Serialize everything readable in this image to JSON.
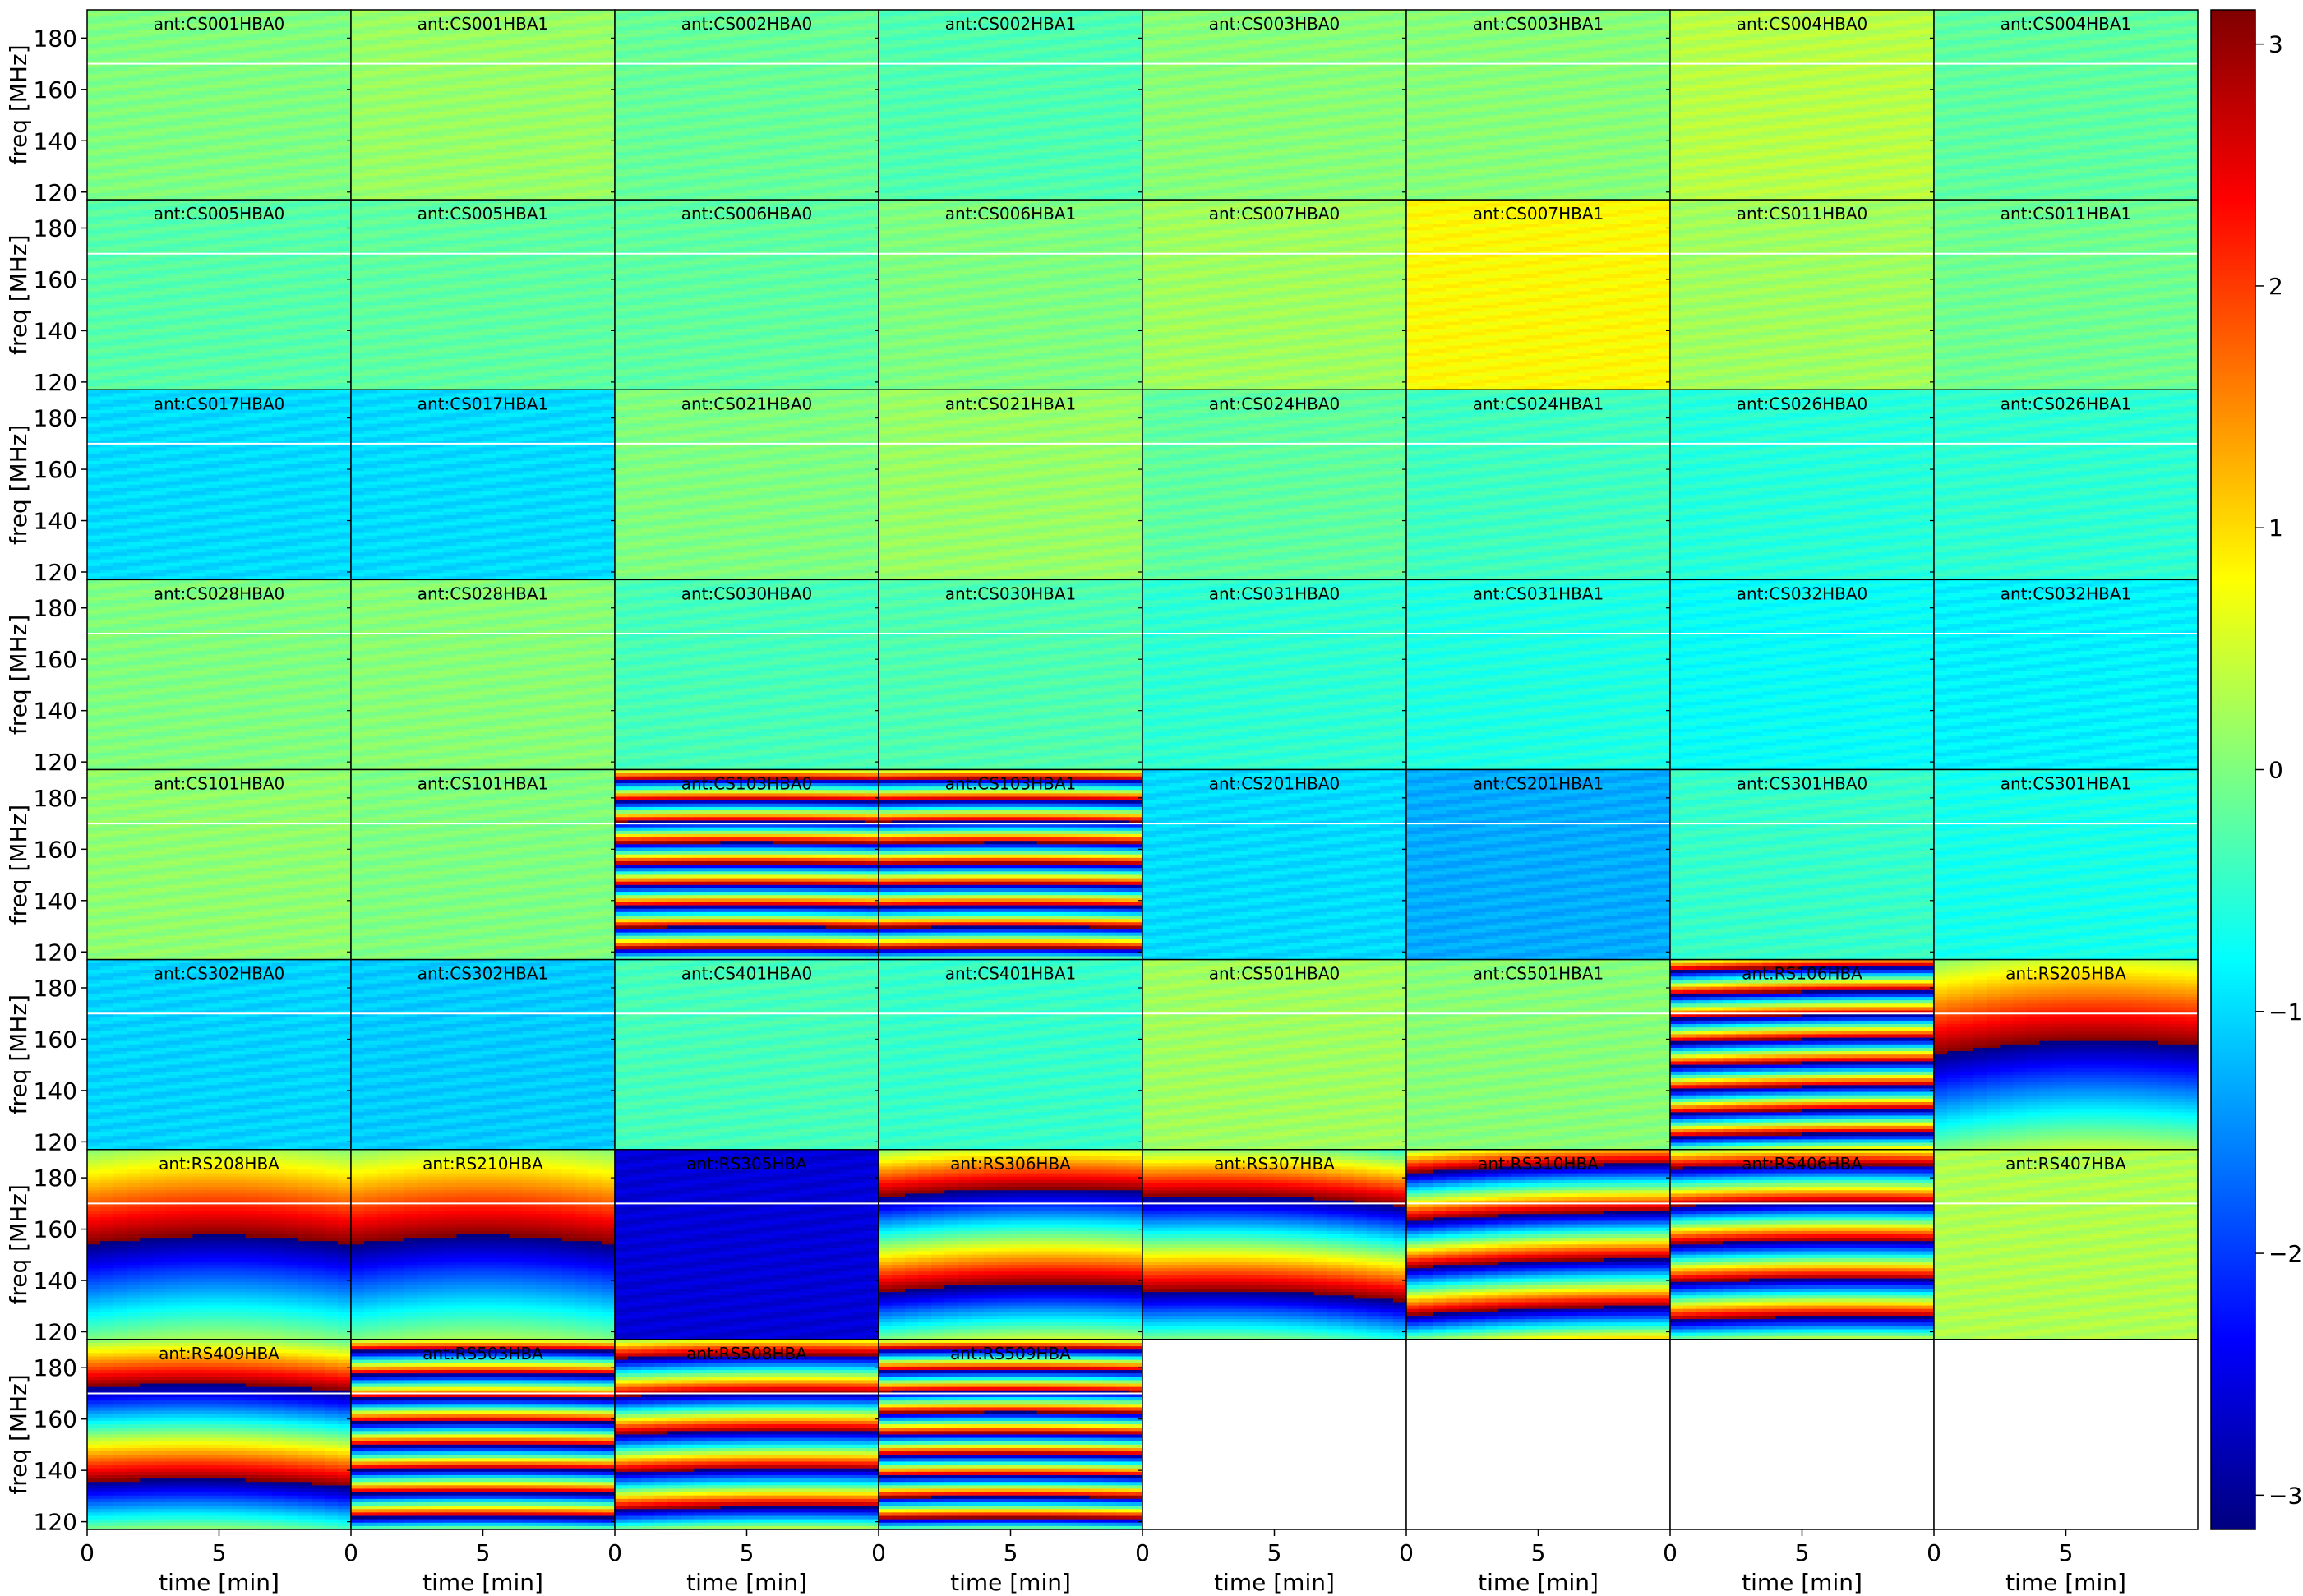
{
  "chart_data": {
    "type": "heatmap",
    "layout": {
      "rows": 8,
      "cols": 8
    },
    "xlabel": "time [min]",
    "ylabel": "freq [MHz]",
    "xlim": [
      0,
      10
    ],
    "ylim": [
      117,
      191
    ],
    "x_ticks": [
      0,
      5
    ],
    "y_ticks": [
      120,
      140,
      160,
      180
    ],
    "colormap": "jet",
    "colorbar": {
      "vmin": -3.14159,
      "vmax": 3.14159,
      "ticks": [
        3,
        2,
        1,
        0,
        -1,
        -2,
        -3
      ],
      "tick_labels": [
        "3",
        "2",
        "1",
        "0",
        "−1",
        "−2",
        "−3"
      ]
    },
    "masked_freq_line_mhz": 170,
    "panels": [
      {
        "title": "ant:CS001HBA0",
        "mean_phase": 0.0,
        "wraps": 0,
        "slope": 0
      },
      {
        "title": "ant:CS001HBA1",
        "mean_phase": 0.15,
        "wraps": 0,
        "slope": 0
      },
      {
        "title": "ant:CS002HBA0",
        "mean_phase": -0.15,
        "wraps": 0,
        "slope": 0
      },
      {
        "title": "ant:CS002HBA1",
        "mean_phase": -0.3,
        "wraps": 0,
        "slope": 0
      },
      {
        "title": "ant:CS003HBA0",
        "mean_phase": 0.05,
        "wraps": 0,
        "slope": 0
      },
      {
        "title": "ant:CS003HBA1",
        "mean_phase": 0.05,
        "wraps": 0,
        "slope": 0
      },
      {
        "title": "ant:CS004HBA0",
        "mean_phase": 0.35,
        "wraps": 0,
        "slope": 0
      },
      {
        "title": "ant:CS004HBA1",
        "mean_phase": -0.2,
        "wraps": 0,
        "slope": 0
      },
      {
        "title": "ant:CS005HBA0",
        "mean_phase": -0.25,
        "wraps": 0,
        "slope": 0
      },
      {
        "title": "ant:CS005HBA1",
        "mean_phase": -0.2,
        "wraps": 0,
        "slope": 0
      },
      {
        "title": "ant:CS006HBA0",
        "mean_phase": -0.2,
        "wraps": 0,
        "slope": 0
      },
      {
        "title": "ant:CS006HBA1",
        "mean_phase": 0.0,
        "wraps": 0,
        "slope": 0
      },
      {
        "title": "ant:CS007HBA0",
        "mean_phase": 0.2,
        "wraps": 0,
        "slope": 0
      },
      {
        "title": "ant:CS007HBA1",
        "mean_phase": 0.8,
        "wraps": 0,
        "slope": 0
      },
      {
        "title": "ant:CS011HBA0",
        "mean_phase": 0.2,
        "wraps": 0,
        "slope": 0
      },
      {
        "title": "ant:CS011HBA1",
        "mean_phase": -0.1,
        "wraps": 0,
        "slope": 0
      },
      {
        "title": "ant:CS017HBA0",
        "mean_phase": -1.0,
        "wraps": 0,
        "slope": 0
      },
      {
        "title": "ant:CS017HBA1",
        "mean_phase": -1.0,
        "wraps": 0,
        "slope": 0
      },
      {
        "title": "ant:CS021HBA0",
        "mean_phase": 0.0,
        "wraps": 0,
        "slope": 0
      },
      {
        "title": "ant:CS021HBA1",
        "mean_phase": 0.15,
        "wraps": 0,
        "slope": 0
      },
      {
        "title": "ant:CS024HBA0",
        "mean_phase": -0.2,
        "wraps": 0,
        "slope": 0
      },
      {
        "title": "ant:CS024HBA1",
        "mean_phase": -0.4,
        "wraps": 0,
        "slope": 0
      },
      {
        "title": "ant:CS026HBA0",
        "mean_phase": -0.55,
        "wraps": 0,
        "slope": 0
      },
      {
        "title": "ant:CS026HBA1",
        "mean_phase": -0.5,
        "wraps": 0,
        "slope": 0
      },
      {
        "title": "ant:CS028HBA0",
        "mean_phase": 0.0,
        "wraps": 0,
        "slope": 0
      },
      {
        "title": "ant:CS028HBA1",
        "mean_phase": 0.05,
        "wraps": 0,
        "slope": 0
      },
      {
        "title": "ant:CS030HBA0",
        "mean_phase": -0.35,
        "wraps": 0,
        "slope": 0
      },
      {
        "title": "ant:CS030HBA1",
        "mean_phase": -0.3,
        "wraps": 0,
        "slope": 0
      },
      {
        "title": "ant:CS031HBA0",
        "mean_phase": -0.5,
        "wraps": 0,
        "slope": 0
      },
      {
        "title": "ant:CS031HBA1",
        "mean_phase": -0.6,
        "wraps": 0,
        "slope": 0
      },
      {
        "title": "ant:CS032HBA0",
        "mean_phase": -0.75,
        "wraps": 0,
        "slope": 0
      },
      {
        "title": "ant:CS032HBA1",
        "mean_phase": -0.85,
        "wraps": 0,
        "slope": 0
      },
      {
        "title": "ant:CS101HBA0",
        "mean_phase": 0.1,
        "wraps": 0,
        "slope": 0
      },
      {
        "title": "ant:CS101HBA1",
        "mean_phase": 0.0,
        "wraps": 0,
        "slope": 0
      },
      {
        "title": "ant:CS103HBA0",
        "mean_phase": 0,
        "wraps": 9,
        "slope": 0
      },
      {
        "title": "ant:CS103HBA1",
        "mean_phase": 0,
        "wraps": 9,
        "slope": 0
      },
      {
        "title": "ant:CS201HBA0",
        "mean_phase": -1.0,
        "wraps": 0,
        "slope": 0
      },
      {
        "title": "ant:CS201HBA1",
        "mean_phase": -1.3,
        "wraps": 0,
        "slope": 0
      },
      {
        "title": "ant:CS301HBA0",
        "mean_phase": -0.45,
        "wraps": 0,
        "slope": 0
      },
      {
        "title": "ant:CS301HBA1",
        "mean_phase": -0.65,
        "wraps": 0,
        "slope": 0
      },
      {
        "title": "ant:CS302HBA0",
        "mean_phase": -1.05,
        "wraps": 0,
        "slope": 0
      },
      {
        "title": "ant:CS302HBA1",
        "mean_phase": -1.1,
        "wraps": 0,
        "slope": 0
      },
      {
        "title": "ant:CS401HBA0",
        "mean_phase": -0.35,
        "wraps": 0,
        "slope": 0
      },
      {
        "title": "ant:CS401HBA1",
        "mean_phase": -0.45,
        "wraps": 0,
        "slope": 0
      },
      {
        "title": "ant:CS501HBA0",
        "mean_phase": 0.2,
        "wraps": 0,
        "slope": 0
      },
      {
        "title": "ant:CS501HBA1",
        "mean_phase": 0.05,
        "wraps": 0,
        "slope": 0
      },
      {
        "title": "ant:RS106HBA",
        "mean_phase": 0,
        "wraps": 8,
        "slope": 0.3
      },
      {
        "title": "ant:RS205HBA",
        "mean_phase": 0,
        "wraps": 1,
        "slope": 0.6
      },
      {
        "title": "ant:RS208HBA",
        "mean_phase": 0,
        "wraps": 1,
        "slope": 0
      },
      {
        "title": "ant:RS210HBA",
        "mean_phase": 0,
        "wraps": 1,
        "slope": 0
      },
      {
        "title": "ant:RS305HBA",
        "mean_phase": -2.6,
        "wraps": 0,
        "slope": 0
      },
      {
        "title": "ant:RS306HBA",
        "mean_phase": 0,
        "wraps": 2,
        "slope": 0.4
      },
      {
        "title": "ant:RS307HBA",
        "mean_phase": 0,
        "wraps": 2,
        "slope": -0.6
      },
      {
        "title": "ant:RS310HBA",
        "mean_phase": 0,
        "wraps": 4,
        "slope": 0.6
      },
      {
        "title": "ant:RS406HBA",
        "mean_phase": 0,
        "wraps": 5,
        "slope": 0.2
      },
      {
        "title": "ant:RS407HBA",
        "mean_phase": 0.3,
        "wraps": 0,
        "slope": 0
      },
      {
        "title": "ant:RS409HBA",
        "mean_phase": 0,
        "wraps": 2,
        "slope": -0.3
      },
      {
        "title": "ant:RS503HBA",
        "mean_phase": 0,
        "wraps": 8,
        "slope": 0
      },
      {
        "title": "ant:RS508HBA",
        "mean_phase": 0,
        "wraps": 5,
        "slope": 0.2
      },
      {
        "title": "ant:RS509HBA",
        "mean_phase": 0,
        "wraps": 9,
        "slope": 0
      }
    ]
  }
}
